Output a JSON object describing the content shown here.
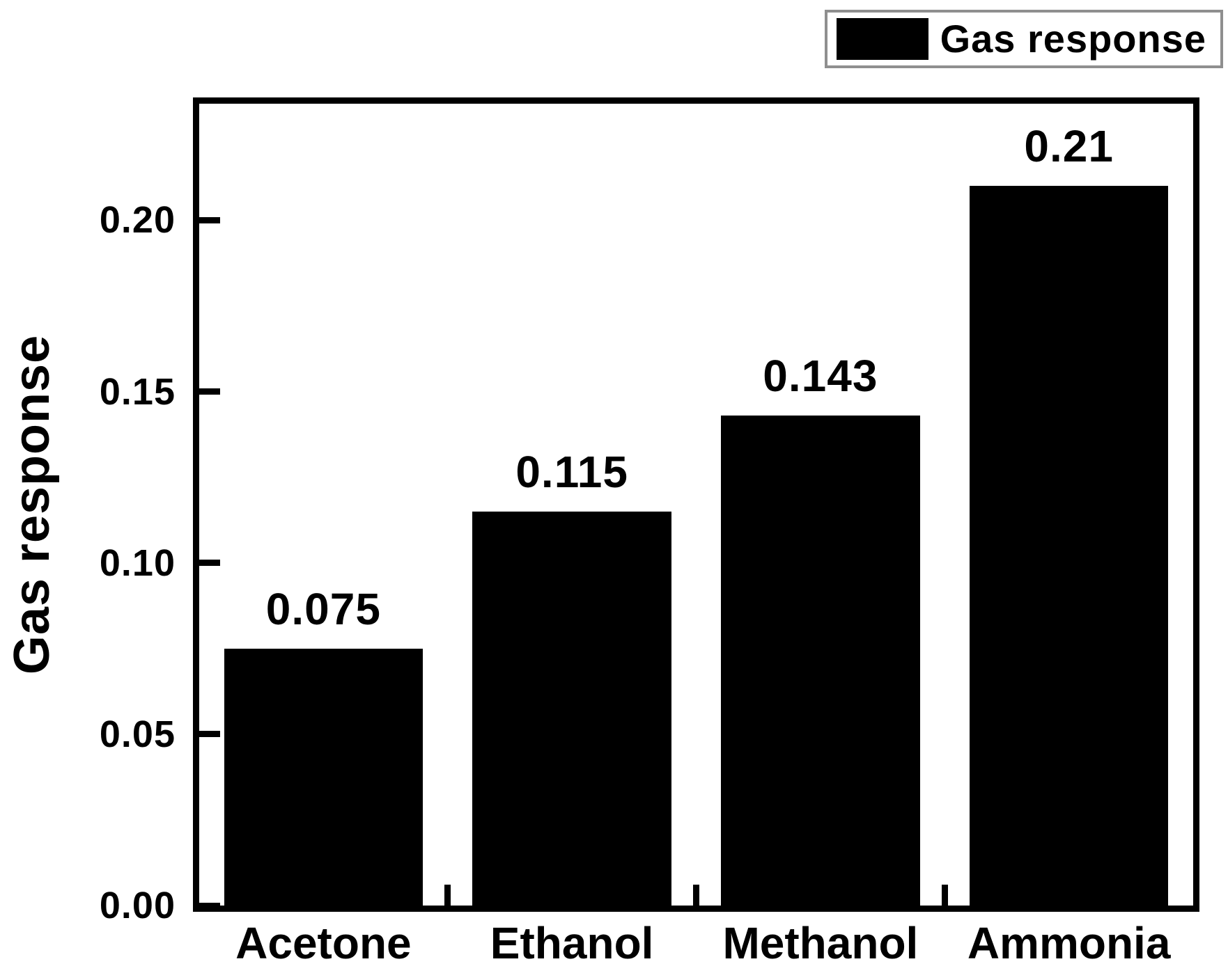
{
  "figure": {
    "background": "#ffffff",
    "foreground": "#000000"
  },
  "legend": {
    "label": "Gas response",
    "swatch_color": "#000000",
    "border_color": "#8f8f8f"
  },
  "chart_data": {
    "type": "bar",
    "title": "",
    "categories": [
      "Acetone",
      "Ethanol",
      "Methanol",
      "Ammonia"
    ],
    "values": [
      0.075,
      0.115,
      0.143,
      0.21
    ],
    "value_labels": [
      "0.075",
      "0.115",
      "0.143",
      "0.21"
    ],
    "series": [
      {
        "name": "Gas response",
        "values": [
          0.075,
          0.115,
          0.143,
          0.21
        ]
      }
    ],
    "xlabel": "",
    "ylabel": "Gas response",
    "ylim": [
      0,
      0.234
    ],
    "yticks": [
      0,
      0.05,
      0.1,
      0.15,
      0.2
    ],
    "ytick_labels": [
      "0.00",
      "0.05",
      "0.10",
      "0.15",
      "0.20"
    ],
    "bar_color": "#000000",
    "bar_width_frac": 0.8,
    "grid": false,
    "legend_position": "top-right"
  }
}
